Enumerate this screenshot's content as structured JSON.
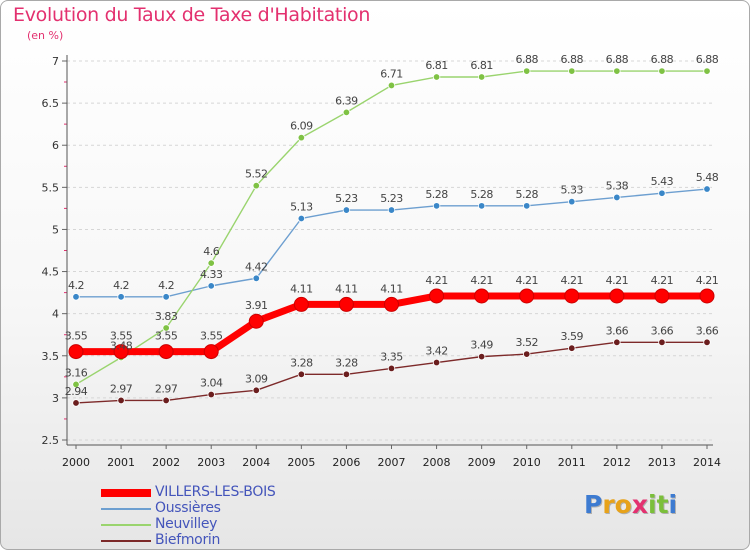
{
  "title": "Evolution du Taux de Taxe d'Habitation",
  "unit_label": "(en %)",
  "logo": {
    "text": "Proxiti",
    "letters": [
      {
        "ch": "P",
        "color": "#3d7bd1"
      },
      {
        "ch": "r",
        "color": "#e7a21a"
      },
      {
        "ch": "o",
        "color": "#e7a21a"
      },
      {
        "ch": "x",
        "color": "#e3306f"
      },
      {
        "ch": "i",
        "color": "#7bbf3a"
      },
      {
        "ch": "t",
        "color": "#7bbf3a"
      },
      {
        "ch": "i",
        "color": "#3d7bd1"
      }
    ]
  },
  "chart_data": {
    "type": "line",
    "title": "Evolution du Taux de Taxe d'Habitation",
    "ylabel": "(en %)",
    "xlabel": "",
    "ylim": [
      2.5,
      7
    ],
    "yticks": [
      "2.5",
      "3",
      "3.5",
      "4",
      "4.5",
      "5",
      "5.5",
      "6",
      "6.5",
      "7"
    ],
    "categories": [
      "2000",
      "2001",
      "2002",
      "2003",
      "2004",
      "2005",
      "2006",
      "2007",
      "2008",
      "2009",
      "2010",
      "2011",
      "2012",
      "2013",
      "2014"
    ],
    "grid": "horizontal dashed",
    "legend_position": "bottom-left",
    "series": [
      {
        "name": "VILLERS-LES-BOIS",
        "color": "#ff0000",
        "emphasis": "thick",
        "values": [
          3.55,
          3.55,
          3.55,
          3.55,
          3.91,
          4.11,
          4.11,
          4.11,
          4.21,
          4.21,
          4.21,
          4.21,
          4.21,
          4.21,
          4.21
        ],
        "labels": [
          "3.55",
          "3.55",
          "3.55",
          "3.55",
          "3.91",
          "4.11",
          "4.11",
          "4.11",
          "4.21",
          "4.21",
          "4.21",
          "4.21",
          "4.21",
          "4.21",
          "4.21"
        ]
      },
      {
        "name": "Oussières",
        "color": "#6d9fd0",
        "marker_color": "#3a87c8",
        "values": [
          4.2,
          4.2,
          4.2,
          4.33,
          4.42,
          5.13,
          5.23,
          5.23,
          5.28,
          5.28,
          5.28,
          5.33,
          5.38,
          5.43,
          5.48
        ],
        "labels": [
          "4.2",
          "4.2",
          "4.2",
          "4.33",
          "4.42",
          "5.13",
          "5.23",
          "5.23",
          "5.28",
          "5.28",
          "5.28",
          "5.33",
          "5.38",
          "5.43",
          "5.48"
        ]
      },
      {
        "name": "Neuvilley",
        "color": "#9ad46e",
        "marker_color": "#7fc244",
        "values": [
          3.16,
          3.48,
          3.83,
          4.6,
          5.52,
          6.09,
          6.39,
          6.71,
          6.81,
          6.81,
          6.88,
          6.88,
          6.88,
          6.88,
          6.88
        ],
        "labels": [
          "3.16",
          "3.48",
          "3.83",
          "4.6",
          "5.52",
          "6.09",
          "6.39",
          "6.71",
          "6.81",
          "6.81",
          "6.88",
          "6.88",
          "6.88",
          "6.88",
          "6.88"
        ]
      },
      {
        "name": "Biefmorin",
        "color": "#7d2a2a",
        "marker_color": "#6b1e1e",
        "values": [
          2.94,
          2.97,
          2.97,
          3.04,
          3.09,
          3.28,
          3.28,
          3.35,
          3.42,
          3.49,
          3.52,
          3.59,
          3.66,
          3.66,
          3.66
        ],
        "labels": [
          "2.94",
          "2.97",
          "2.97",
          "3.04",
          "3.09",
          "3.28",
          "3.28",
          "3.35",
          "3.42",
          "3.49",
          "3.52",
          "3.59",
          "3.66",
          "3.66",
          "3.66"
        ]
      }
    ]
  }
}
